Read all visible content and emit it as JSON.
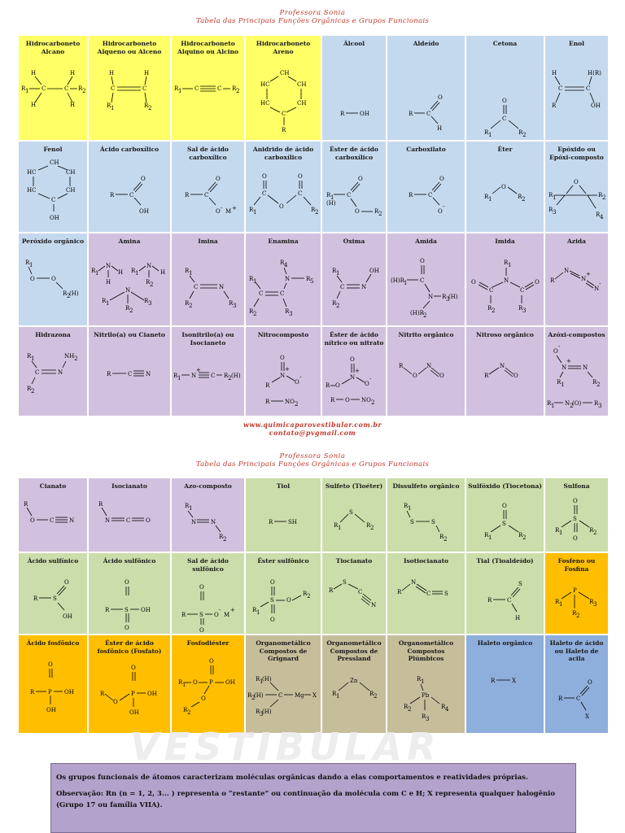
{
  "header1": {
    "author": "Professora Sonia",
    "title": "Tabela das Principais Funções Orgânicas e Grupos Funcionais"
  },
  "header2": {
    "author": "Professora Sonia",
    "title": "Tabela das Principais Funções Orgânicas e Grupos Funcionais"
  },
  "website": "www.quimicaparovestibular.com.br",
  "email": "contato@pvgmail.com",
  "watermark": "VESTIBULAR",
  "colors": {
    "alkane": "#ffff66",
    "blue": "#c5d9ee",
    "purple": "#d2c1de",
    "green": "#cbddaa",
    "orange": "#ffbf00",
    "khaki": "#c6bd9b",
    "halide": "#8eaedb"
  },
  "table1": [
    [
      "Hidrocarboneto Alcano",
      "Hidrocarboneto Alqueno ou Alceno",
      "Hidrocarboneto Alquino ou Alcino",
      "Hidrocarboneto Areno",
      "Álcool",
      "Aldeído",
      "Cetona",
      "Enol"
    ],
    [
      "Fenol",
      "Ácido carboxílico",
      "Sal de ácido carboxílico",
      "Anidrido de ácido carboxílico",
      "Éster de ácido carboxílico",
      "Carboxilato",
      "Éter",
      "Epóxido ou Epóxi-composto"
    ],
    [
      "Peróxido orgânico",
      "Amina",
      "Imina",
      "Enamina",
      "Oxima",
      "Amida",
      "Imida",
      "Azida"
    ],
    [
      "Hidrazona",
      "Nitrilo(a) ou Cianeto",
      "Isonitrilo(a) ou Isocianeto",
      "Nitrocomposto",
      "Éster de ácido nítrico ou nitrato",
      "Nitrito orgânico",
      "Nitroso orgânico",
      "Azóxi-compostos"
    ]
  ],
  "table2": [
    [
      "Cianato",
      "Isocianato",
      "Azo-composto",
      "Tiol",
      "Sulfeto (Tioéter)",
      "Dissulfeto orgânico",
      "Sulfóxido (Tiocetona)",
      "Sulfona"
    ],
    [
      "Ácido sulfínico",
      "Ácido sulfônico",
      "Sal de ácido sulfônico",
      "Éster sulfônico",
      "Tiocianato",
      "Isotiocianato",
      "Tial (Tioaldeído)",
      "Fosfeno ou Fosfina"
    ],
    [
      "Ácido fosfônico",
      "Éster de ácido fosfônico (Fosfato)",
      "Fosfodiéster",
      "Organometálico Compostos de Grignard",
      "Organometálico Compostos de Pressland",
      "Organometálico Compostos Plúmbicos",
      "Haleto orgânico",
      "Haleto de ácido ou Haleto de acila"
    ]
  ],
  "note": {
    "p1": "Os grupos funcionais de átomos caracterizam moléculas orgânicas dando a elas comportamentos e reatividades próprias.",
    "p2": "Observação: Rn (n = 1, 2, 3... ) representa o “restante” ou continuação da molécula com C e H; X representa qualquer halogênio (Grupo 17 ou família VIIA)."
  }
}
